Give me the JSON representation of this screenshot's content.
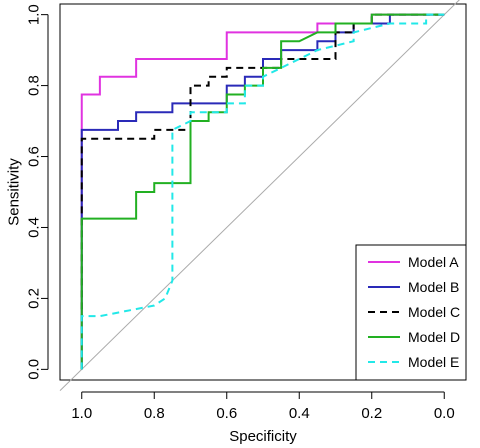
{
  "chart_data": {
    "type": "line",
    "title": "",
    "xlabel": "Specificity",
    "ylabel": "Sensitivity",
    "xlim": [
      1.06,
      -0.06
    ],
    "ylim": [
      -0.03,
      1.03
    ],
    "x_reversed": true,
    "x_ticks": [
      1.0,
      0.8,
      0.6,
      0.4,
      0.2,
      0.0
    ],
    "x_tick_labels": [
      "1.0",
      "0.8",
      "0.6",
      "0.4",
      "0.2",
      "0.0"
    ],
    "y_ticks": [
      0.0,
      0.2,
      0.4,
      0.6,
      0.8,
      1.0
    ],
    "y_tick_labels": [
      "0.0",
      "0.2",
      "0.4",
      "0.6",
      "0.8",
      "1.0"
    ],
    "grid": false,
    "legend_position": "bottom-right",
    "reference_line": {
      "from": [
        1.0,
        0.0
      ],
      "to": [
        0.0,
        1.0
      ],
      "color": "#aaaaaa"
    },
    "series": [
      {
        "name": "Model A",
        "color": "#e033e0",
        "dash": "solid",
        "points": [
          [
            1.0,
            0.0
          ],
          [
            1.0,
            0.775
          ],
          [
            0.95,
            0.775
          ],
          [
            0.95,
            0.825
          ],
          [
            0.85,
            0.825
          ],
          [
            0.85,
            0.875
          ],
          [
            0.6,
            0.875
          ],
          [
            0.6,
            0.95
          ],
          [
            0.35,
            0.95
          ],
          [
            0.35,
            0.975
          ],
          [
            0.2,
            0.975
          ],
          [
            0.2,
            1.0
          ],
          [
            0.0,
            1.0
          ]
        ]
      },
      {
        "name": "Model B",
        "color": "#2a2ab8",
        "dash": "solid",
        "points": [
          [
            1.0,
            0.0
          ],
          [
            1.0,
            0.675
          ],
          [
            0.9,
            0.675
          ],
          [
            0.9,
            0.7
          ],
          [
            0.85,
            0.7
          ],
          [
            0.85,
            0.725
          ],
          [
            0.75,
            0.725
          ],
          [
            0.75,
            0.75
          ],
          [
            0.6,
            0.75
          ],
          [
            0.6,
            0.8
          ],
          [
            0.55,
            0.8
          ],
          [
            0.55,
            0.825
          ],
          [
            0.5,
            0.825
          ],
          [
            0.5,
            0.875
          ],
          [
            0.45,
            0.875
          ],
          [
            0.45,
            0.9
          ],
          [
            0.35,
            0.9
          ],
          [
            0.35,
            0.925
          ],
          [
            0.3,
            0.925
          ],
          [
            0.3,
            0.95
          ],
          [
            0.25,
            0.95
          ],
          [
            0.25,
            0.975
          ],
          [
            0.15,
            0.975
          ],
          [
            0.15,
            1.0
          ],
          [
            0.0,
            1.0
          ]
        ]
      },
      {
        "name": "Model C",
        "color": "#000000",
        "dash": "dashed",
        "points": [
          [
            1.0,
            0.0
          ],
          [
            1.0,
            0.65
          ],
          [
            0.8,
            0.65
          ],
          [
            0.8,
            0.675
          ],
          [
            0.7,
            0.675
          ],
          [
            0.7,
            0.8
          ],
          [
            0.65,
            0.8
          ],
          [
            0.65,
            0.825
          ],
          [
            0.6,
            0.825
          ],
          [
            0.6,
            0.85
          ],
          [
            0.45,
            0.85
          ],
          [
            0.45,
            0.875
          ],
          [
            0.3,
            0.875
          ],
          [
            0.3,
            0.95
          ],
          [
            0.25,
            0.95
          ],
          [
            0.25,
            0.975
          ],
          [
            0.2,
            0.975
          ],
          [
            0.2,
            1.0
          ],
          [
            0.0,
            1.0
          ]
        ]
      },
      {
        "name": "Model D",
        "color": "#22b022",
        "dash": "solid",
        "points": [
          [
            1.0,
            0.0
          ],
          [
            1.0,
            0.425
          ],
          [
            0.85,
            0.425
          ],
          [
            0.85,
            0.5
          ],
          [
            0.8,
            0.5
          ],
          [
            0.8,
            0.525
          ],
          [
            0.7,
            0.525
          ],
          [
            0.7,
            0.7
          ],
          [
            0.65,
            0.7
          ],
          [
            0.65,
            0.725
          ],
          [
            0.6,
            0.725
          ],
          [
            0.6,
            0.775
          ],
          [
            0.55,
            0.775
          ],
          [
            0.55,
            0.8
          ],
          [
            0.5,
            0.8
          ],
          [
            0.5,
            0.85
          ],
          [
            0.45,
            0.85
          ],
          [
            0.45,
            0.925
          ],
          [
            0.4,
            0.925
          ],
          [
            0.35,
            0.95
          ],
          [
            0.3,
            0.95
          ],
          [
            0.3,
            0.975
          ],
          [
            0.2,
            0.975
          ],
          [
            0.2,
            1.0
          ],
          [
            0.0,
            1.0
          ]
        ]
      },
      {
        "name": "Model E",
        "color": "#22e8e8",
        "dash": "dashed",
        "points": [
          [
            1.0,
            0.0
          ],
          [
            1.0,
            0.15
          ],
          [
            0.95,
            0.15
          ],
          [
            0.9,
            0.16
          ],
          [
            0.8,
            0.18
          ],
          [
            0.77,
            0.2
          ],
          [
            0.75,
            0.25
          ],
          [
            0.75,
            0.675
          ],
          [
            0.7,
            0.7
          ],
          [
            0.7,
            0.725
          ],
          [
            0.6,
            0.725
          ],
          [
            0.6,
            0.75
          ],
          [
            0.55,
            0.75
          ],
          [
            0.55,
            0.8
          ],
          [
            0.5,
            0.8
          ],
          [
            0.5,
            0.825
          ],
          [
            0.45,
            0.85
          ],
          [
            0.4,
            0.875
          ],
          [
            0.35,
            0.9
          ],
          [
            0.25,
            0.925
          ],
          [
            0.25,
            0.95
          ],
          [
            0.15,
            0.975
          ],
          [
            0.05,
            0.975
          ],
          [
            0.05,
            1.0
          ],
          [
            0.0,
            1.0
          ]
        ]
      }
    ]
  }
}
